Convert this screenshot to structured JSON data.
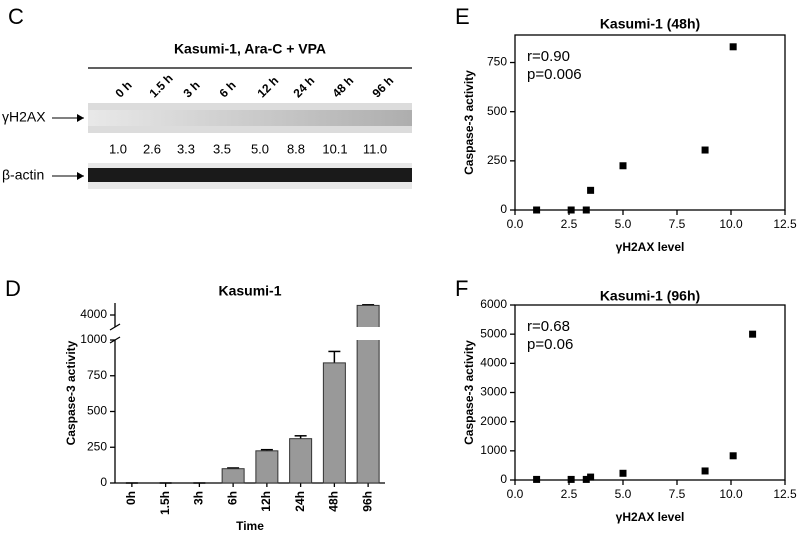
{
  "blot": {
    "panel": "C",
    "title": "Kasumi-1, Ara-C + VPA",
    "lanes": [
      "0 h",
      "1.5 h",
      "3 h",
      "6 h",
      "12 h",
      "24 h",
      "48 h",
      "96 h"
    ],
    "bands": [
      {
        "label": "γH2AX",
        "quantification": [
          "1.0",
          "2.6",
          "3.3",
          "3.5",
          "5.0",
          "8.8",
          "10.1",
          "11.0"
        ]
      },
      {
        "label": "β-actin"
      }
    ]
  },
  "chart_data": [
    {
      "type": "bar",
      "panel": "D",
      "title": "Kasumi-1",
      "xlabel": "Time",
      "ylabel": "Caspase-3 activity",
      "categories": [
        "0h",
        "1.5h",
        "3h",
        "6h",
        "12h",
        "24h",
        "48h",
        "96h"
      ],
      "values": [
        0,
        0,
        0,
        100,
        225,
        310,
        840,
        4800
      ],
      "errors": [
        0,
        0,
        0,
        5,
        8,
        20,
        80,
        50
      ],
      "color": "#999999",
      "ylim": [
        0,
        5000
      ],
      "axis_break": [
        1000,
        3000
      ],
      "yticks": [
        0,
        250,
        500,
        750,
        1000,
        4000
      ]
    },
    {
      "type": "scatter",
      "panel": "E",
      "title": "Kasumi-1 (48h)",
      "xlabel": "γH2AX level",
      "ylabel": "Caspase-3 activity",
      "annotations": [
        "r=0.90",
        "p=0.006"
      ],
      "x": [
        1.0,
        2.6,
        3.3,
        3.5,
        5.0,
        8.8,
        10.1
      ],
      "values": [
        0,
        0,
        0,
        100,
        225,
        305,
        830
      ],
      "color": "#000000",
      "xlim": [
        0,
        12.5
      ],
      "xticks": [
        {
          "value": 0,
          "label": "0.0"
        },
        2.5,
        {
          "value": 5,
          "label": "5.0"
        },
        7.5,
        {
          "value": 10,
          "label": "10.0"
        },
        12.5
      ],
      "ylim": [
        0,
        890
      ],
      "yticks": [
        0,
        250,
        500,
        750
      ]
    },
    {
      "type": "scatter",
      "panel": "F",
      "title": "Kasumi-1 (96h)",
      "xlabel": "γH2AX level",
      "ylabel": "Caspase-3 activity",
      "annotations": [
        "r=0.68",
        "p=0.06"
      ],
      "x": [
        1.0,
        2.6,
        3.3,
        3.5,
        5.0,
        8.8,
        10.1,
        11.0
      ],
      "values": [
        20,
        20,
        20,
        100,
        230,
        310,
        830,
        5000
      ],
      "color": "#000000",
      "xlim": [
        0,
        12.5
      ],
      "xticks": [
        {
          "value": 0,
          "label": "0.0"
        },
        2.5,
        {
          "value": 5,
          "label": "5.0"
        },
        7.5,
        {
          "value": 10,
          "label": "10.0"
        },
        12.5
      ],
      "ylim": [
        0,
        6000
      ],
      "yticks": [
        0,
        1000,
        2000,
        3000,
        4000,
        5000,
        6000
      ]
    }
  ]
}
